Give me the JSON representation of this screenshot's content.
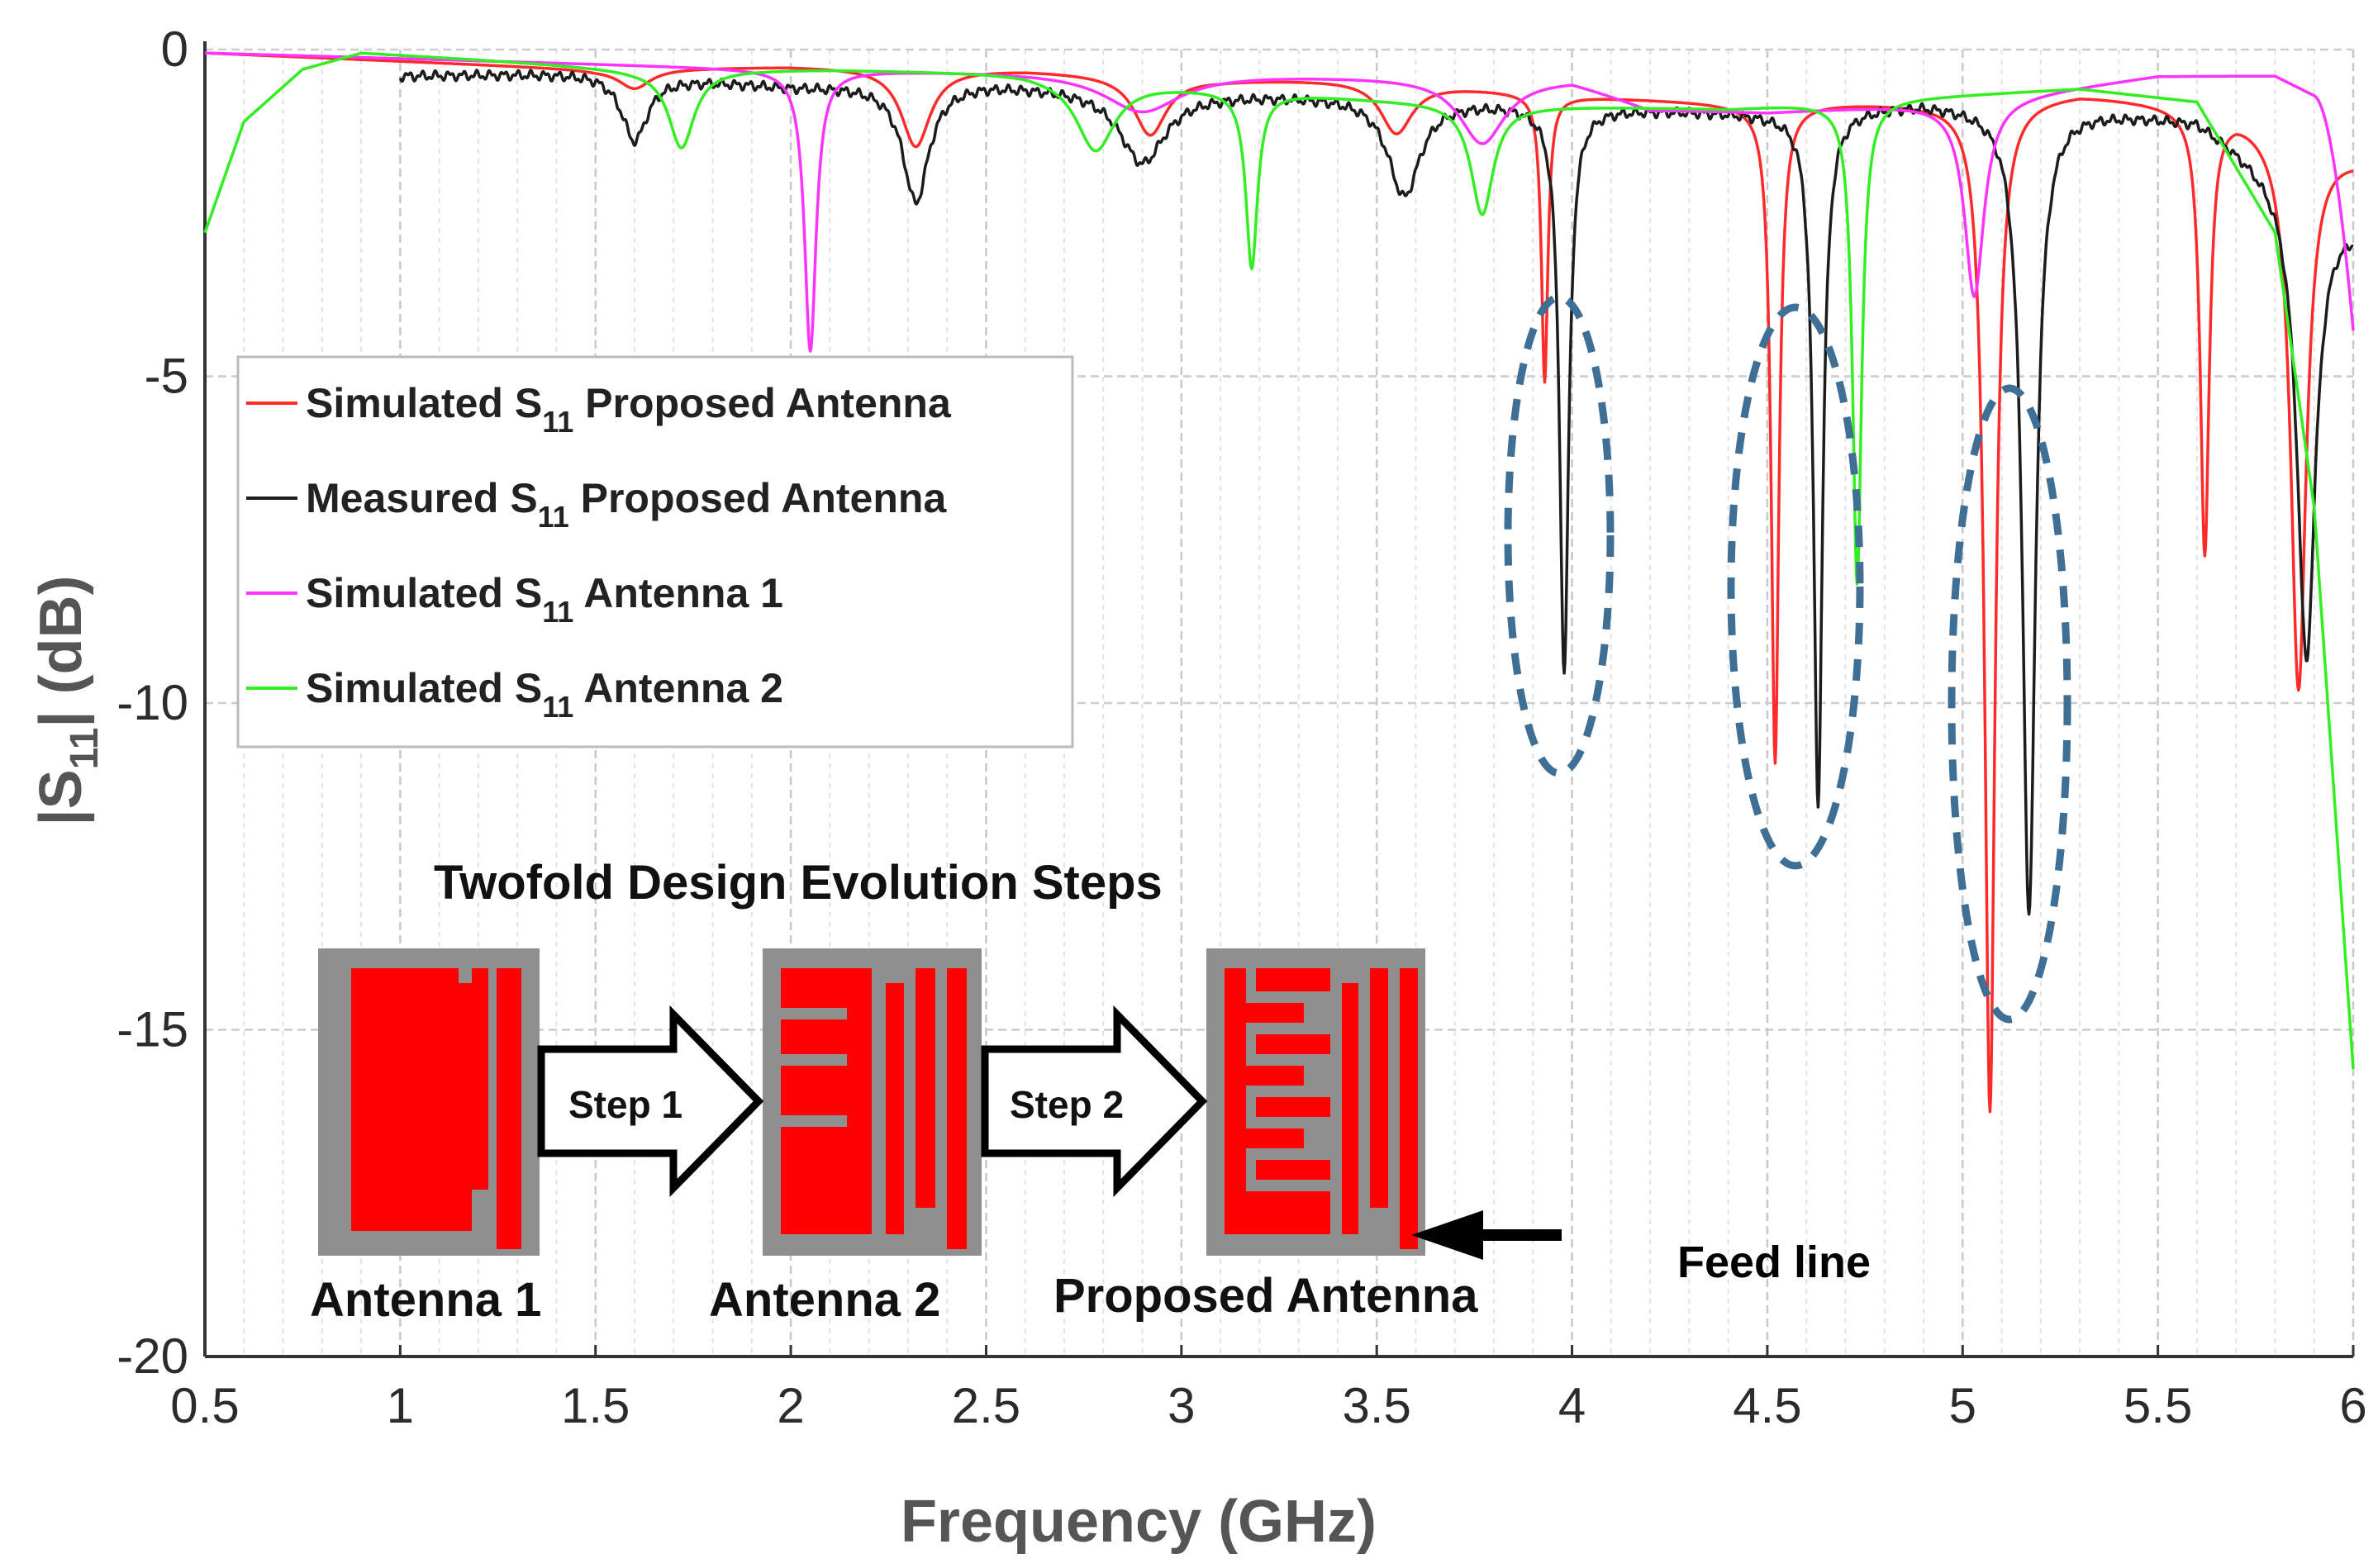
{
  "chart_data": {
    "type": "line",
    "xlabel": "Frequency (GHz)",
    "ylabel": "|S11| (dB)",
    "xlim": [
      0.5,
      6
    ],
    "ylim": [
      -20,
      0
    ],
    "x_ticks": [
      "0.5",
      "1",
      "1.5",
      "2",
      "2.5",
      "3",
      "3.5",
      "4",
      "4.5",
      "5",
      "5.5",
      "6"
    ],
    "y_ticks": [
      "0",
      "-5",
      "-10",
      "-15",
      "-20"
    ],
    "grid": true,
    "legend_position": "left",
    "series": [
      {
        "name": "Simulated S11 Proposed Antenna",
        "legend_pre": "Simulated S",
        "legend_sub": "11",
        "legend_post": " Proposed Antenna",
        "color": "#ff2a2a",
        "start": 0.5,
        "baseline": [
          [
            0.5,
            -0.05
          ],
          [
            1.5,
            -0.3
          ],
          [
            2.0,
            -0.25
          ],
          [
            2.6,
            -0.3
          ],
          [
            3.1,
            -0.45
          ],
          [
            3.5,
            -0.45
          ],
          [
            4.0,
            -0.7
          ],
          [
            4.4,
            -0.8
          ],
          [
            4.9,
            -0.8
          ],
          [
            5.3,
            -0.65
          ],
          [
            5.7,
            -0.9
          ],
          [
            6.0,
            -1.6
          ]
        ],
        "dips": [
          [
            1.6,
            0.3,
            0.05
          ],
          [
            2.32,
            1.2,
            0.045
          ],
          [
            2.92,
            0.9,
            0.05
          ],
          [
            3.55,
            0.8,
            0.05
          ],
          [
            3.93,
            4.4,
            0.01
          ],
          [
            4.52,
            10.1,
            0.012
          ],
          [
            5.07,
            15.5,
            0.016
          ],
          [
            5.62,
            6.8,
            0.014
          ],
          [
            5.86,
            8.5,
            0.024
          ]
        ]
      },
      {
        "name": "Measured S11 Proposed Antenna",
        "legend_pre": "Measured S",
        "legend_sub": "11",
        "legend_post": " Proposed Antenna",
        "color": "#1c1c1c",
        "start": 1.0,
        "baseline": [
          [
            1.0,
            -0.4
          ],
          [
            1.5,
            -0.35
          ],
          [
            2.0,
            -0.55
          ],
          [
            2.5,
            -0.5
          ],
          [
            3.0,
            -0.65
          ],
          [
            3.5,
            -0.7
          ],
          [
            4.2,
            -0.9
          ],
          [
            4.5,
            -0.95
          ],
          [
            4.9,
            -0.8
          ],
          [
            5.3,
            -0.9
          ],
          [
            5.6,
            -1.05
          ],
          [
            6.0,
            -2.6
          ]
        ],
        "dips": [
          [
            1.6,
            1.0,
            0.04
          ],
          [
            2.32,
            1.8,
            0.04
          ],
          [
            2.9,
            1.1,
            0.07
          ],
          [
            3.57,
            1.5,
            0.05
          ],
          [
            3.98,
            8.7,
            0.014
          ],
          [
            4.63,
            10.6,
            0.014
          ],
          [
            5.17,
            12.4,
            0.02
          ],
          [
            5.88,
            7.2,
            0.028
          ]
        ]
      },
      {
        "name": "Simulated S11 Antenna 1",
        "legend_pre": "Simulated S",
        "legend_sub": "11",
        "legend_post": "  Antenna 1",
        "color": "#ff33ff",
        "start": 0.5,
        "baseline": [
          [
            0.5,
            -0.05
          ],
          [
            2.0,
            -0.3
          ],
          [
            3.0,
            -0.35
          ],
          [
            4.0,
            -0.45
          ],
          [
            4.2,
            -0.9
          ],
          [
            4.5,
            -0.95
          ],
          [
            5.0,
            -0.8
          ],
          [
            5.5,
            -0.4
          ],
          [
            5.8,
            -0.4
          ],
          [
            6.0,
            -1.0
          ]
        ],
        "dips": [
          [
            2.05,
            4.3,
            0.018
          ],
          [
            2.9,
            0.6,
            0.12
          ],
          [
            3.77,
            1.0,
            0.07
          ],
          [
            5.03,
            3.0,
            0.03
          ]
        ],
        "tail": [
          [
            5.9,
            6.0,
            -4.3
          ]
        ]
      },
      {
        "name": "Simulated S11 Antenna 2",
        "legend_pre": "Simulated S",
        "legend_sub": "11",
        "legend_post": " Antenna 2",
        "color": "#33ee22",
        "start": 0.5,
        "baseline": [
          [
            0.5,
            -2.8
          ],
          [
            0.6,
            -1.1
          ],
          [
            0.75,
            -0.3
          ],
          [
            0.9,
            -0.05
          ],
          [
            1.2,
            -0.15
          ],
          [
            1.6,
            -0.3
          ],
          [
            2.1,
            -0.3
          ],
          [
            2.6,
            -0.35
          ],
          [
            3.0,
            -0.55
          ],
          [
            3.5,
            -0.75
          ],
          [
            3.9,
            -0.85
          ],
          [
            4.4,
            -0.9
          ],
          [
            4.8,
            -0.75
          ],
          [
            5.3,
            -0.6
          ],
          [
            5.6,
            -0.8
          ],
          [
            5.8,
            -2.8
          ],
          [
            5.9,
            -7.0
          ],
          [
            6.0,
            -15.6
          ]
        ],
        "dips": [
          [
            1.72,
            1.2,
            0.04
          ],
          [
            2.78,
            1.1,
            0.06
          ],
          [
            3.18,
            2.7,
            0.018
          ],
          [
            3.77,
            1.7,
            0.035
          ],
          [
            4.73,
            7.4,
            0.014
          ]
        ]
      }
    ],
    "annotations": {
      "inset_title": "Twofold Design Evolution Steps",
      "step1": "Step 1",
      "step2": "Step 2",
      "antenna1": "Antenna 1",
      "antenna2": "Antenna 2",
      "proposed": "Proposed Antenna",
      "feed_line": "Feed line"
    }
  }
}
